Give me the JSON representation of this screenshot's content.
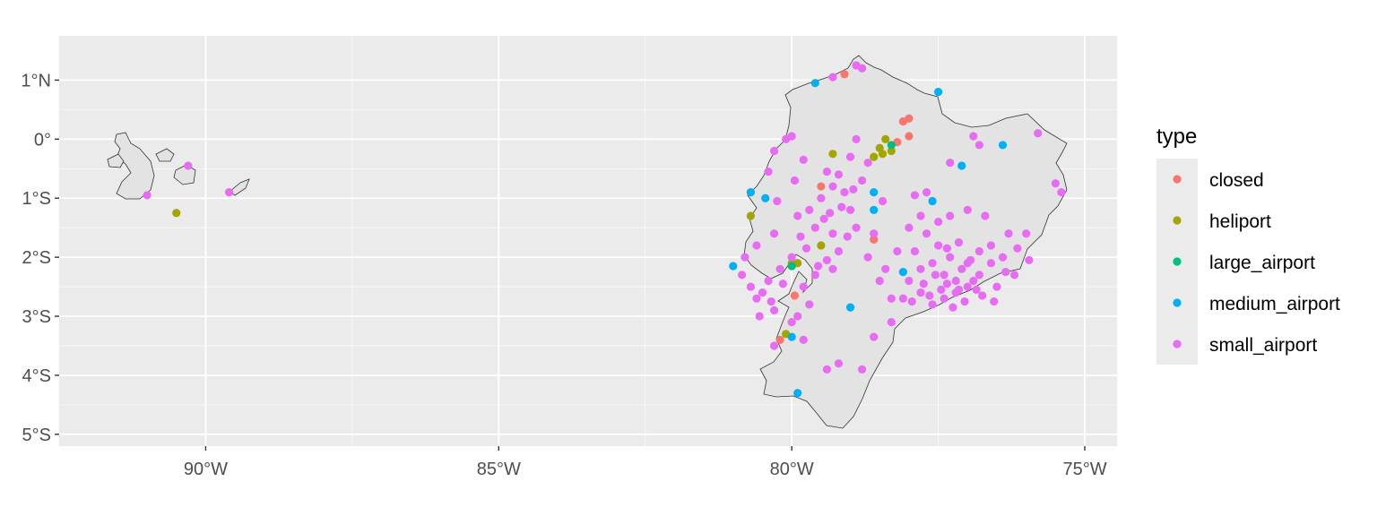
{
  "chart_data": {
    "type": "scatter",
    "subtype": "map",
    "title": "",
    "xlabel": "",
    "ylabel": "",
    "xlim": [
      -92.5,
      -74.45
    ],
    "ylim": [
      -5.2,
      1.75
    ],
    "x_ticks": [
      {
        "value": -90,
        "label": "90°W"
      },
      {
        "value": -85,
        "label": "85°W"
      },
      {
        "value": -80,
        "label": "80°W"
      },
      {
        "value": -75,
        "label": "75°W"
      }
    ],
    "y_ticks": [
      {
        "value": 1,
        "label": "1°N"
      },
      {
        "value": 0,
        "label": "0°"
      },
      {
        "value": -1,
        "label": "1°S"
      },
      {
        "value": -2,
        "label": "2°S"
      },
      {
        "value": -3,
        "label": "3°S"
      },
      {
        "value": -4,
        "label": "4°S"
      },
      {
        "value": -5,
        "label": "5°S"
      }
    ],
    "grid": true,
    "panel_background": "#ebebeb",
    "grid_color": "#ffffff",
    "land_fill": "#e3e3e3",
    "land_outline": "#333333",
    "legend": {
      "title": "type",
      "position": "right"
    },
    "series": [
      {
        "name": "closed",
        "color": "#F8766D",
        "points": [
          [
            -79.1,
            1.1
          ],
          [
            -78.1,
            0.3
          ],
          [
            -78.0,
            0.35
          ],
          [
            -78.0,
            0.05
          ],
          [
            -79.5,
            -0.8
          ],
          [
            -78.6,
            -1.7
          ],
          [
            -79.95,
            -2.65
          ],
          [
            -80.2,
            -3.4
          ],
          [
            -78.2,
            -0.05
          ]
        ]
      },
      {
        "name": "heliport",
        "color": "#A3A500",
        "points": [
          [
            -90.5,
            -1.25
          ],
          [
            -80.7,
            -1.3
          ],
          [
            -80.0,
            -2.1
          ],
          [
            -79.9,
            -2.1
          ],
          [
            -79.5,
            -1.8
          ],
          [
            -79.3,
            -0.25
          ],
          [
            -78.4,
            0.0
          ],
          [
            -78.5,
            -0.15
          ],
          [
            -78.6,
            -0.3
          ],
          [
            -78.3,
            -0.2
          ],
          [
            -80.1,
            -3.3
          ],
          [
            -78.45,
            -0.25
          ]
        ]
      },
      {
        "name": "large_airport",
        "color": "#00BF7D",
        "points": [
          [
            -80.0,
            -2.15
          ],
          [
            -78.3,
            -0.1
          ]
        ]
      },
      {
        "name": "medium_airport",
        "color": "#00B0F6",
        "points": [
          [
            -79.6,
            0.95
          ],
          [
            -77.5,
            0.8
          ],
          [
            -76.4,
            -0.1
          ],
          [
            -77.1,
            -0.45
          ],
          [
            -80.7,
            -0.9
          ],
          [
            -80.45,
            -1.0
          ],
          [
            -78.6,
            -0.9
          ],
          [
            -78.6,
            -1.2
          ],
          [
            -77.6,
            -1.05
          ],
          [
            -81.0,
            -2.15
          ],
          [
            -78.1,
            -2.25
          ],
          [
            -79.0,
            -2.85
          ],
          [
            -80.0,
            -3.35
          ],
          [
            -79.9,
            -4.3
          ]
        ]
      },
      {
        "name": "small_airport",
        "color": "#E76BF3",
        "points": [
          [
            -78.8,
            1.2
          ],
          [
            -78.9,
            1.25
          ],
          [
            -79.3,
            1.05
          ],
          [
            -75.8,
            0.1
          ],
          [
            -76.9,
            0.05
          ],
          [
            -76.8,
            -0.1
          ],
          [
            -77.3,
            -0.4
          ],
          [
            -75.5,
            -0.75
          ],
          [
            -75.4,
            -0.9
          ],
          [
            -91.0,
            -0.95
          ],
          [
            -90.3,
            -0.45
          ],
          [
            -89.6,
            -0.9
          ],
          [
            -80.1,
            0.0
          ],
          [
            -80.0,
            0.05
          ],
          [
            -80.3,
            -0.2
          ],
          [
            -80.4,
            -0.55
          ],
          [
            -79.8,
            -0.35
          ],
          [
            -79.4,
            -0.55
          ],
          [
            -79.3,
            -0.8
          ],
          [
            -79.5,
            -1.0
          ],
          [
            -79.7,
            -1.2
          ],
          [
            -79.9,
            -1.3
          ],
          [
            -79.6,
            -1.5
          ],
          [
            -79.3,
            -1.6
          ],
          [
            -79.2,
            -1.9
          ],
          [
            -79.4,
            -2.05
          ],
          [
            -79.3,
            -2.2
          ],
          [
            -79.6,
            -2.3
          ],
          [
            -79.8,
            -2.5
          ],
          [
            -79.7,
            -2.8
          ],
          [
            -79.9,
            -3.0
          ],
          [
            -80.0,
            -3.1
          ],
          [
            -80.3,
            -2.9
          ],
          [
            -80.5,
            -2.6
          ],
          [
            -80.4,
            -2.4
          ],
          [
            -80.2,
            -2.2
          ],
          [
            -80.0,
            -2.0
          ],
          [
            -80.3,
            -1.6
          ],
          [
            -80.6,
            -1.8
          ],
          [
            -80.8,
            -2.0
          ],
          [
            -80.7,
            -2.5
          ],
          [
            -80.6,
            -2.7
          ],
          [
            -80.3,
            -3.5
          ],
          [
            -79.8,
            -3.4
          ],
          [
            -79.4,
            -3.9
          ],
          [
            -79.2,
            -3.8
          ],
          [
            -78.8,
            -3.9
          ],
          [
            -78.6,
            -3.35
          ],
          [
            -78.3,
            -3.1
          ],
          [
            -78.1,
            -2.7
          ],
          [
            -78.0,
            -2.4
          ],
          [
            -77.8,
            -2.6
          ],
          [
            -77.6,
            -2.8
          ],
          [
            -77.4,
            -2.7
          ],
          [
            -77.2,
            -2.6
          ],
          [
            -77.0,
            -2.5
          ],
          [
            -76.8,
            -2.3
          ],
          [
            -76.6,
            -2.1
          ],
          [
            -76.4,
            -2.0
          ],
          [
            -76.2,
            -2.3
          ],
          [
            -76.5,
            -2.5
          ],
          [
            -76.9,
            -2.4
          ],
          [
            -77.1,
            -2.2
          ],
          [
            -77.3,
            -2.0
          ],
          [
            -77.5,
            -1.8
          ],
          [
            -77.7,
            -1.6
          ],
          [
            -77.9,
            -1.9
          ],
          [
            -77.6,
            -2.1
          ],
          [
            -77.4,
            -2.3
          ],
          [
            -77.2,
            -2.4
          ],
          [
            -77.0,
            -2.1
          ],
          [
            -76.8,
            -1.9
          ],
          [
            -76.6,
            -1.8
          ],
          [
            -76.3,
            -1.6
          ],
          [
            -76.0,
            -1.6
          ],
          [
            -76.7,
            -1.3
          ],
          [
            -77.0,
            -1.2
          ],
          [
            -77.3,
            -1.3
          ],
          [
            -77.5,
            -1.4
          ],
          [
            -77.8,
            -1.3
          ],
          [
            -78.0,
            -1.5
          ],
          [
            -78.2,
            -1.9
          ],
          [
            -78.4,
            -2.2
          ],
          [
            -78.3,
            -2.7
          ],
          [
            -78.5,
            -2.4
          ],
          [
            -78.7,
            -2.0
          ],
          [
            -78.9,
            -1.5
          ],
          [
            -79.0,
            -1.2
          ],
          [
            -79.1,
            -0.9
          ],
          [
            -79.2,
            -0.6
          ],
          [
            -79.0,
            -0.3
          ],
          [
            -78.9,
            0.0
          ],
          [
            -78.7,
            -0.4
          ],
          [
            -78.8,
            -0.7
          ],
          [
            -77.7,
            -0.9
          ],
          [
            -77.9,
            -0.95
          ],
          [
            -78.6,
            -1.6
          ],
          [
            -77.35,
            -1.85
          ],
          [
            -77.15,
            -1.75
          ],
          [
            -76.95,
            -2.05
          ],
          [
            -77.45,
            -2.55
          ],
          [
            -77.65,
            -2.65
          ],
          [
            -77.25,
            -2.85
          ],
          [
            -77.05,
            -2.75
          ],
          [
            -76.85,
            -2.55
          ],
          [
            -77.55,
            -2.3
          ],
          [
            -77.35,
            -2.45
          ],
          [
            -77.75,
            -2.45
          ],
          [
            -77.95,
            -2.75
          ],
          [
            -77.15,
            -2.55
          ],
          [
            -76.75,
            -2.65
          ],
          [
            -76.55,
            -2.75
          ],
          [
            -79.55,
            -2.15
          ],
          [
            -79.45,
            -1.35
          ],
          [
            -79.15,
            -1.15
          ],
          [
            -78.95,
            -0.85
          ],
          [
            -79.05,
            -1.65
          ],
          [
            -80.15,
            -2.45
          ],
          [
            -80.35,
            -2.75
          ],
          [
            -80.55,
            -3.0
          ],
          [
            -79.75,
            -1.85
          ],
          [
            -79.85,
            -1.65
          ],
          [
            -80.85,
            -2.3
          ],
          [
            -80.25,
            -1.05
          ],
          [
            -79.95,
            -0.7
          ],
          [
            -79.35,
            -1.25
          ],
          [
            -78.45,
            -1.05
          ],
          [
            -77.8,
            -2.2
          ],
          [
            -76.35,
            -2.25
          ],
          [
            -76.15,
            -1.85
          ],
          [
            -75.95,
            -2.05
          ]
        ]
      }
    ]
  }
}
